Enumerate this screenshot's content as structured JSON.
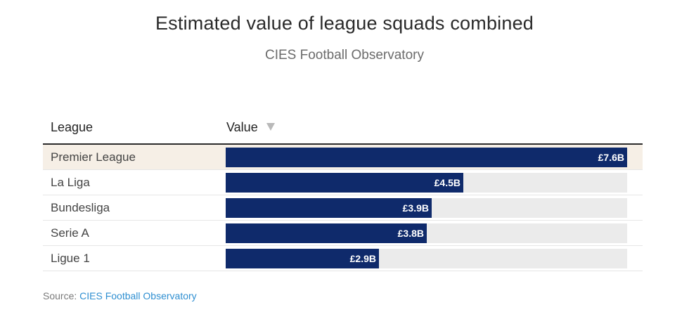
{
  "title": "Estimated value of league squads combined",
  "subtitle": "CIES Football Observatory",
  "table": {
    "headers": {
      "league": "League",
      "value": "Value"
    },
    "sort_icon": "sort-desc-triangle-icon"
  },
  "chart_data": {
    "type": "bar",
    "orientation": "horizontal",
    "categories": [
      "Premier League",
      "La Liga",
      "Bundesliga",
      "Serie A",
      "Ligue 1"
    ],
    "values": [
      7.6,
      4.5,
      3.9,
      3.8,
      2.9
    ],
    "value_labels": [
      "£7.6B",
      "£4.5B",
      "£3.9B",
      "£3.8B",
      "£2.9B"
    ],
    "xlim": [
      0,
      7.6
    ],
    "highlight_category": "Premier League",
    "colors": {
      "bar": "#0f2a6b",
      "track": "#ebebeb",
      "highlight_row": "#f6efe6"
    }
  },
  "source": {
    "prefix": "Source: ",
    "link_text": "CIES Football Observatory",
    "link_color": "#2f8fd1"
  }
}
